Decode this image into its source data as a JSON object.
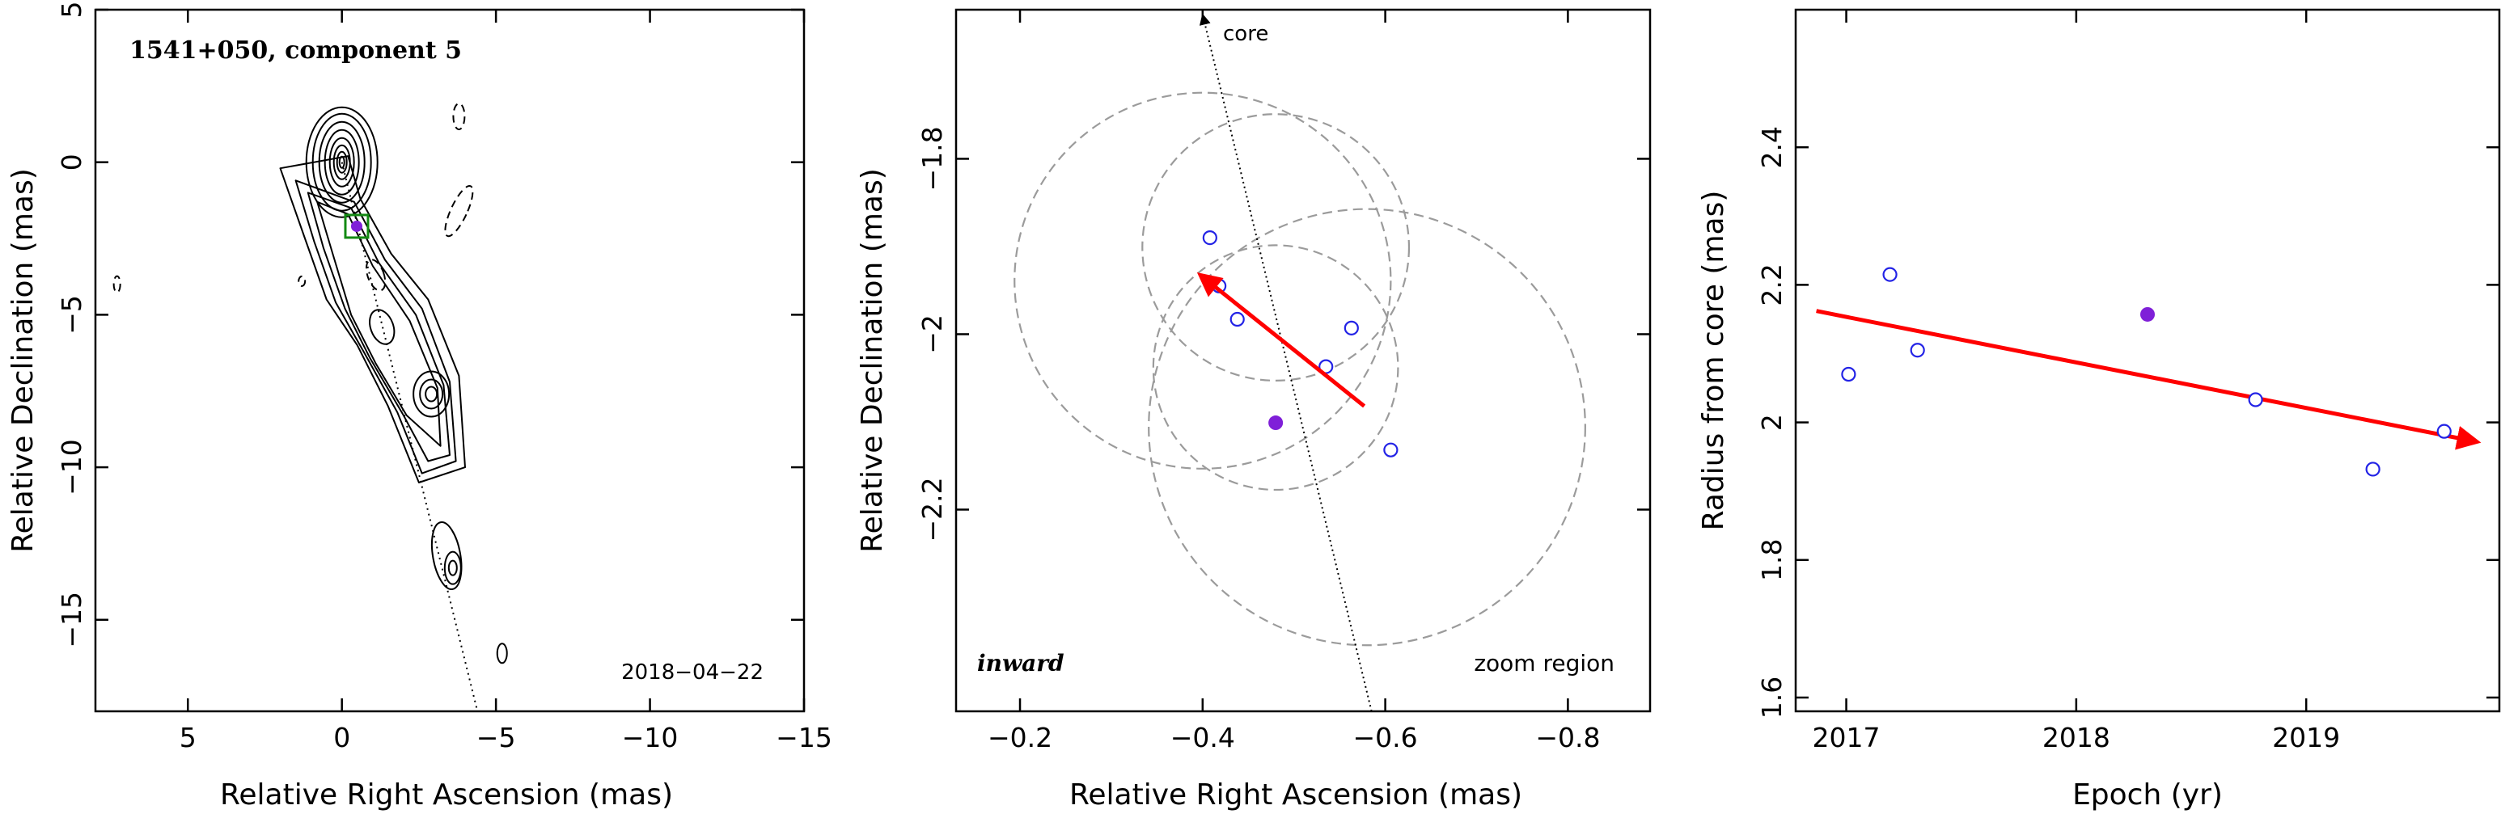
{
  "chart_data": [
    {
      "type": "contour",
      "title": "1541+050, component 5",
      "date_label": "2018−04−22",
      "xlabel": "Relative Right Ascension (mas)",
      "ylabel": "Relative Declination (mas)",
      "xlim": [
        8,
        -15
      ],
      "ylim": [
        -18,
        5
      ],
      "xticks": [
        5,
        0,
        -5,
        -10,
        -15
      ],
      "yticks": [
        5,
        0,
        -5,
        -10,
        -15
      ],
      "xtick_labels": [
        "5",
        "0",
        "−5",
        "−10",
        "−15"
      ],
      "ytick_labels": [
        "5",
        "0",
        "−5",
        "−10",
        "−15"
      ],
      "component_position": [
        -0.48,
        -2.1
      ],
      "jet_axis_points": [
        [
          0,
          0
        ],
        [
          -4.4,
          -18
        ]
      ],
      "marker_color": "#7f1fd8",
      "box_color": "#138a13"
    },
    {
      "type": "scatter",
      "xlabel": "Relative Right Ascension (mas)",
      "ylabel": "Relative Declination (mas)",
      "xlim": [
        -0.13,
        -0.89
      ],
      "ylim": [
        -2.43,
        -1.63
      ],
      "xticks": [
        -0.2,
        -0.4,
        -0.6,
        -0.8
      ],
      "yticks": [
        -1.8,
        -2,
        -2.2
      ],
      "xtick_labels": [
        "−0.2",
        "−0.4",
        "−0.6",
        "−0.8"
      ],
      "ytick_labels": [
        "−1.8",
        "−2",
        "−2.2"
      ],
      "core_label": "core",
      "left_label": "inward",
      "right_label": "zoom region",
      "points_open": [
        [
          -0.408,
          -1.89
        ],
        [
          -0.418,
          -1.945
        ],
        [
          -0.438,
          -1.983
        ],
        [
          -0.563,
          -1.993
        ],
        [
          -0.535,
          -2.037
        ],
        [
          -0.606,
          -2.132
        ]
      ],
      "point_filled": [
        -0.48,
        -2.101
      ],
      "circles": [
        {
          "cx": -0.4,
          "cy": -1.939,
          "r": 0.206
        },
        {
          "cx": -0.48,
          "cy": -1.901,
          "r": 0.146
        },
        {
          "cx": -0.48,
          "cy": -2.038,
          "r": 0.134
        },
        {
          "cx": -0.58,
          "cy": -2.106,
          "r": 0.239
        }
      ],
      "jet_axis": [
        [
          -0.4,
          -1.63
        ],
        [
          -0.585,
          -2.43
        ]
      ],
      "motion_arrow": {
        "from": [
          -0.577,
          -2.082
        ],
        "to": [
          -0.398,
          -1.933
        ]
      },
      "arrow_color": "#ff0000",
      "marker_color": "#7f1fd8",
      "open_marker_color": "#2323e6"
    },
    {
      "type": "scatter",
      "xlabel": "Epoch (yr)",
      "ylabel": "Radius from core (mas)",
      "xlim": [
        2016.78,
        2019.84
      ],
      "ylim": [
        1.58,
        2.6
      ],
      "xticks": [
        2017,
        2018,
        2019
      ],
      "yticks": [
        1.6,
        1.8,
        2,
        2.2,
        2.4
      ],
      "xtick_labels": [
        "2017",
        "2018",
        "2019"
      ],
      "ytick_labels": [
        "1.6",
        "1.8",
        "2",
        "2.2",
        "2.4"
      ],
      "points_open": [
        [
          2017.01,
          2.07
        ],
        [
          2017.19,
          2.215
        ],
        [
          2017.31,
          2.105
        ],
        [
          2018.78,
          2.033
        ],
        [
          2019.29,
          1.932
        ],
        [
          2019.6,
          1.987
        ]
      ],
      "point_filled": [
        2018.31,
        2.157
      ],
      "fit_arrow": {
        "from": [
          2016.87,
          2.162
        ],
        "to": [
          2019.74,
          1.972
        ]
      },
      "arrow_color": "#ff0000",
      "marker_color": "#7f1fd8",
      "open_marker_color": "#2323e6"
    }
  ]
}
